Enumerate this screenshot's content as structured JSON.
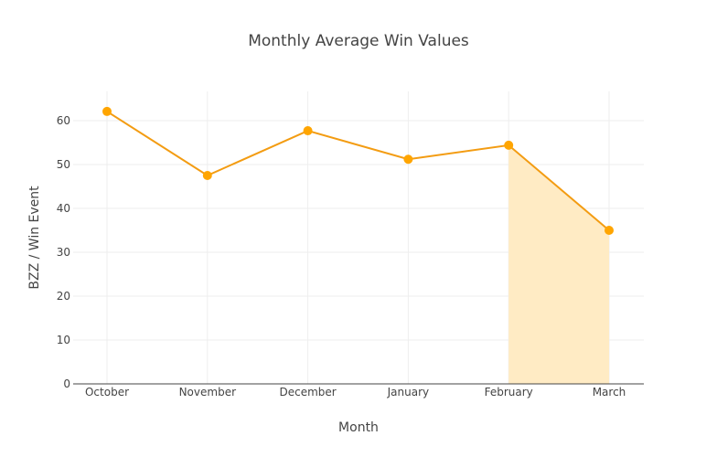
{
  "chart_data": {
    "type": "line",
    "title": "Monthly Average Win Values",
    "xlabel": "Month",
    "ylabel": "BZZ / Win Event",
    "categories": [
      "October",
      "November",
      "December",
      "January",
      "February",
      "March"
    ],
    "series": [
      {
        "name": "Average Win Value",
        "values": [
          62.1,
          47.5,
          57.7,
          51.2,
          54.4,
          35.0
        ],
        "color": "#f39c12",
        "marker_color": "#ffa500"
      }
    ],
    "highlight": {
      "from": "February",
      "to": "March",
      "fill": "#ffebc4"
    },
    "yticks": [
      0,
      10,
      20,
      30,
      40,
      50,
      60
    ],
    "ylim": [
      0,
      66.7
    ],
    "grid": true,
    "legend": false
  }
}
